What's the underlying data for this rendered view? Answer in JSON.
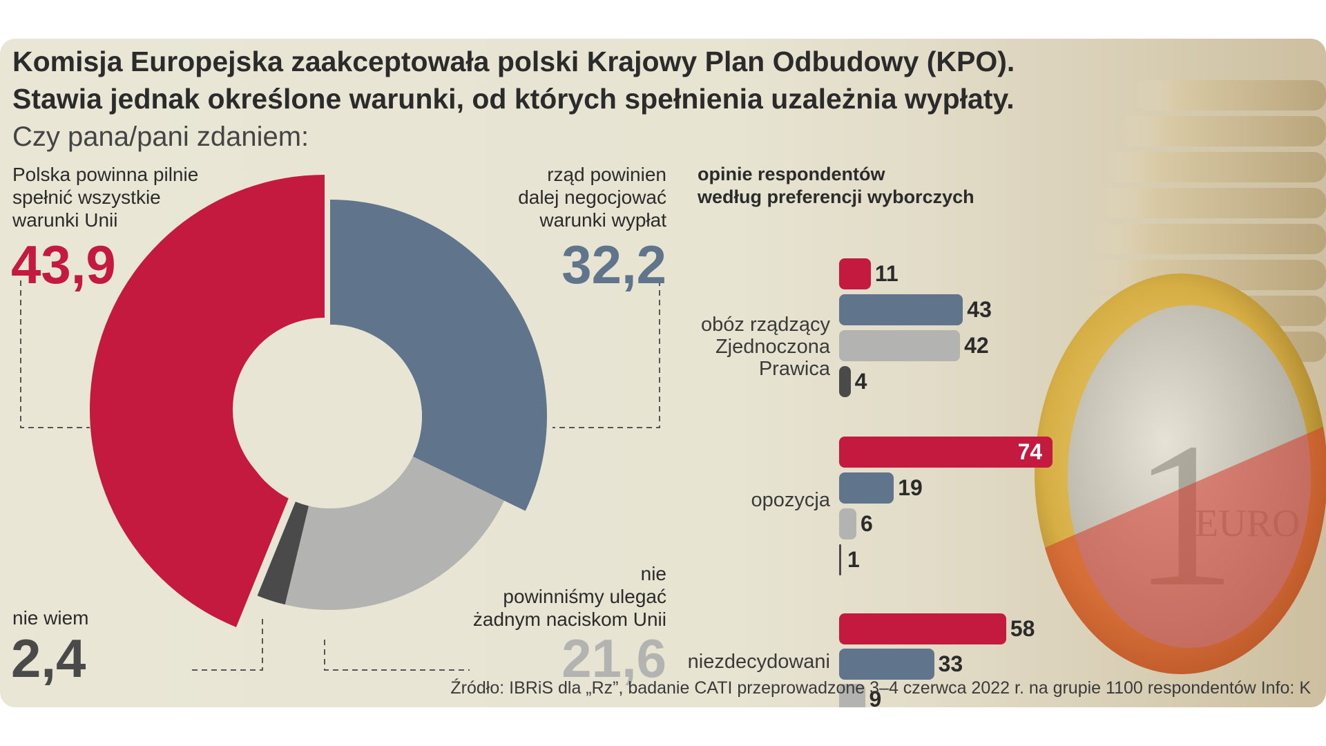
{
  "title_line1": "Komisja Europejska zaakceptowała polski Krajowy Plan Odbudowy (KPO).",
  "title_line2": "Stawia jednak określone warunki, od których spełnienia uzależnia wypłaty.",
  "subtitle": "Czy pana/pani zdaniem:",
  "source": "Źródło: IBRiS dla „Rz”, badanie CATI przeprowadzone 3–4 czerwca 2022 r. na grupie 1100 respondentów   Info: K",
  "colors": {
    "red": "#c51a40",
    "blue": "#60748c",
    "lightgray": "#b3b3b1",
    "dark": "#4a4a4a"
  },
  "chart_data": [
    {
      "type": "pie",
      "slices": [
        {
          "label": "Polska powinna pilnie\nspełnić wszystkie\nwarunki Unii",
          "value": 43.9,
          "display": "43,9",
          "color": "#c51a40"
        },
        {
          "label": "rząd powinien\ndalej negocjować\nwarunki wypłat",
          "value": 32.2,
          "display": "32,2",
          "color": "#60748c"
        },
        {
          "label": "nie\npowinniśmy ulegać\nżadnym naciskom Unii",
          "value": 21.6,
          "display": "21,6",
          "color": "#b3b3b1"
        },
        {
          "label": "nie wiem",
          "value": 2.4,
          "display": "2,4",
          "color": "#4a4a4a"
        }
      ]
    },
    {
      "type": "bar",
      "orientation": "horizontal",
      "title": "opinie respondentów\nwedług preferencji wyborczych",
      "series_colors": [
        "#c51a40",
        "#60748c",
        "#b3b3b1",
        "#4a4a4a"
      ],
      "groups": [
        {
          "label": "obóz rządzący\nZjednoczona\nPrawica",
          "values": [
            11,
            43,
            42,
            4
          ]
        },
        {
          "label": "opozycja",
          "values": [
            74,
            19,
            6,
            1
          ]
        },
        {
          "label": "niezdecydowani",
          "values": [
            58,
            33,
            9
          ]
        }
      ]
    }
  ]
}
